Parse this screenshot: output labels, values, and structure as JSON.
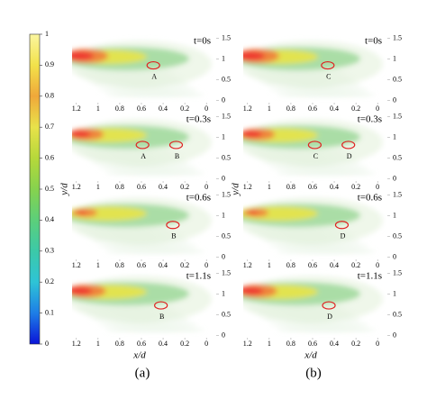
{
  "chart_data": {
    "type": "contour",
    "xlabel": "x/d",
    "ylabel": "y/d",
    "column_labels": [
      "(a)",
      "(b)"
    ],
    "xlim": [
      1.24,
      -0.09
    ],
    "ylim": [
      -0.05,
      1.6
    ],
    "xticks": [
      1.2,
      1,
      0.8,
      0.6,
      0.4,
      0.2,
      0
    ],
    "yticks": [
      0,
      0.5,
      1,
      1.5
    ],
    "colorbar": {
      "lim": [
        0,
        1
      ],
      "ticks": [
        0,
        0.1,
        0.2,
        0.3,
        0.4,
        0.5,
        0.6,
        0.7,
        0.8,
        0.9,
        1
      ],
      "colors": [
        "#0a14d8",
        "#1e7ee6",
        "#2ec4d6",
        "#3cc9a8",
        "#5ccf7a",
        "#86d24e",
        "#b6d83a",
        "#e8e24a",
        "#f0a83a",
        "#f2e24a",
        "#fbf6a0"
      ]
    },
    "panels": [
      {
        "time": "t=0s",
        "annotations": [
          {
            "label": "A",
            "x": 0.49,
            "y": 0.85
          }
        ]
      },
      {
        "time": "t=0.3s",
        "annotations": [
          {
            "label": "A",
            "x": 0.59,
            "y": 0.82
          },
          {
            "label": "B",
            "x": 0.28,
            "y": 0.82
          }
        ]
      },
      {
        "time": "t=0.6s",
        "annotations": [
          {
            "label": "B",
            "x": 0.31,
            "y": 0.78
          }
        ]
      },
      {
        "time": "t=1.1s",
        "annotations": [
          {
            "label": "B",
            "x": 0.42,
            "y": 0.73
          }
        ]
      },
      {
        "time": "t=0s",
        "annotations": [
          {
            "label": "C",
            "x": 0.46,
            "y": 0.85
          }
        ]
      },
      {
        "time": "t=0.3s",
        "annotations": [
          {
            "label": "C",
            "x": 0.58,
            "y": 0.82
          },
          {
            "label": "D",
            "x": 0.27,
            "y": 0.82
          }
        ]
      },
      {
        "time": "t=0.6s",
        "annotations": [
          {
            "label": "D",
            "x": 0.33,
            "y": 0.78
          }
        ]
      },
      {
        "time": "t=1.1s",
        "annotations": [
          {
            "label": "D",
            "x": 0.45,
            "y": 0.73
          }
        ]
      }
    ]
  }
}
